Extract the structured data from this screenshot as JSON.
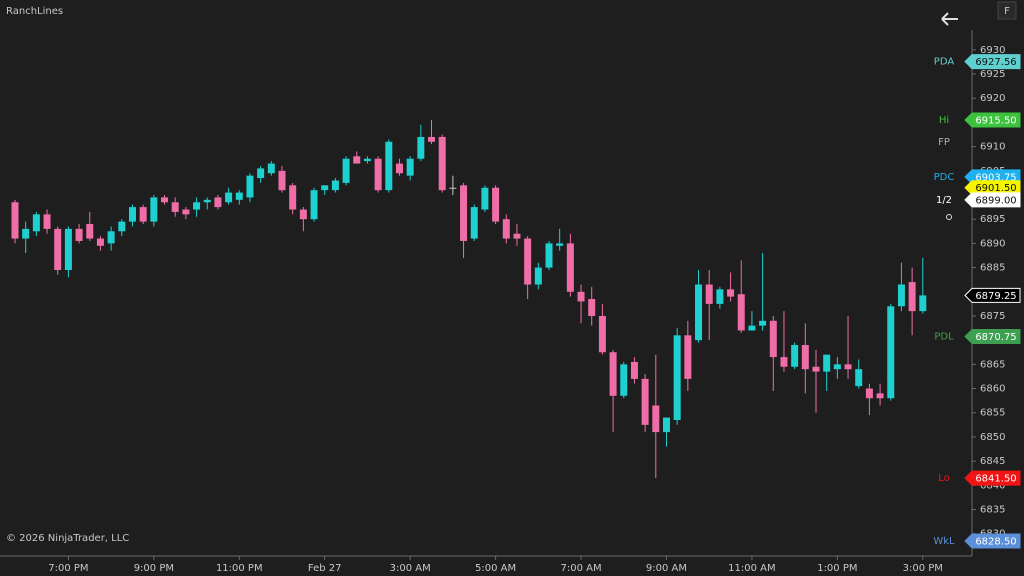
{
  "chart_data": {
    "type": "candlestick",
    "title": "RanchLines",
    "footer": "© 2026 NinjaTrader, LLC",
    "panel_button": "F",
    "categories": [
      null,
      null,
      null,
      null,
      null,
      "7:00 PM",
      null,
      null,
      null,
      null,
      null,
      null,
      null,
      "9:00 PM",
      null,
      null,
      null,
      null,
      null,
      null,
      null,
      "11:00 PM",
      null,
      null,
      null,
      null,
      null,
      null,
      null,
      "Feb 27",
      null,
      null,
      null,
      null,
      null,
      null,
      null,
      "3:00 AM",
      null,
      null,
      null,
      null,
      null,
      null,
      null,
      "5:00 AM",
      null,
      null,
      null,
      null,
      null,
      null,
      null,
      "7:00 AM",
      null,
      null,
      null,
      null,
      null,
      null,
      null,
      "9:00 AM",
      null,
      null,
      null,
      null,
      null,
      null,
      null,
      "11:00 AM",
      null,
      null,
      null,
      null,
      null,
      null,
      null,
      "1:00 PM",
      null,
      null,
      null,
      null,
      null,
      null,
      null,
      "3:00 PM"
    ],
    "open": [
      6898.5,
      6891,
      6892.5,
      6896,
      6893,
      6884.5,
      6893,
      6894,
      6891,
      6890,
      6892.5,
      6894.5,
      6897.5,
      6894.5,
      6899.5,
      6898.5,
      6897,
      6897,
      6898.5,
      6899.5,
      6898.5,
      6899,
      6899.5,
      6903.5,
      6904.5,
      6905,
      6902,
      6897,
      6895,
      6901,
      6901,
      6902.5,
      6908,
      6907,
      6907.5,
      6901,
      6906.5,
      6904,
      6907.5,
      6912,
      6912,
      6901.5,
      6902,
      6891,
      6897,
      6901.5,
      6895,
      6892,
      6891,
      6881.5,
      6885,
      6889.5,
      6890,
      6880,
      6878.5,
      6875,
      6867.5,
      6858.5,
      6865.5,
      6862,
      6856.5,
      6851,
      6853.5,
      6871,
      6870,
      6881.5,
      6877.5,
      6880.5,
      6879.5,
      6872,
      6873,
      6874,
      6866.5,
      6864.5,
      6869,
      6864.5,
      6863.5,
      6864,
      6865,
      6860.5,
      6860,
      6859,
      6858,
      6877,
      6882,
      6876
    ],
    "high": [
      6899,
      6894.5,
      6896.5,
      6897,
      6893.5,
      6893.5,
      6894,
      6896.5,
      6891.5,
      6893.5,
      6895,
      6898,
      6898,
      6900,
      6900,
      6899.5,
      6897.5,
      6899.5,
      6899.5,
      6900,
      6901.5,
      6901,
      6904.5,
      6906,
      6907,
      6906,
      6902.5,
      6897.5,
      6901.5,
      6902,
      6903.5,
      6908,
      6909,
      6908,
      6908,
      6911.5,
      6907.5,
      6908,
      6914.5,
      6915.5,
      6912.5,
      6904,
      6902.5,
      6898,
      6902,
      6902,
      6896,
      6894,
      6891.5,
      6886,
      6890.5,
      6893,
      6892,
      6881.5,
      6881,
      6877.5,
      6868,
      6865.5,
      6866.5,
      6863,
      6867,
      6854,
      6872.5,
      6874,
      6884.5,
      6884.5,
      6881,
      6884,
      6886.5,
      6876,
      6888,
      6875,
      6876,
      6869.5,
      6873.5,
      6868,
      6867,
      6866.5,
      6875,
      6866,
      6861,
      6861,
      6877.5,
      6886,
      6885,
      6887
    ],
    "low": [
      6890,
      6888,
      6891.5,
      6892,
      6883.5,
      6883,
      6890,
      6890.5,
      6888.5,
      6888.5,
      6891.5,
      6893.5,
      6894,
      6893.5,
      6898,
      6895.5,
      6895,
      6895.5,
      6897,
      6897,
      6898,
      6898,
      6898.5,
      6902.5,
      6904,
      6900.5,
      6896,
      6892.5,
      6894.5,
      6900,
      6900.5,
      6902,
      6906.5,
      6906.5,
      6900.5,
      6900.5,
      6904,
      6903,
      6907,
      6910.5,
      6900.5,
      6900,
      6887,
      6890.5,
      6896.5,
      6894,
      6890,
      6889.5,
      6878.5,
      6880.5,
      6884.5,
      6888.5,
      6879,
      6873.5,
      6873,
      6867,
      6851,
      6858,
      6861,
      6851,
      6841.5,
      6848,
      6852.5,
      6859.5,
      6869.5,
      6870,
      6876.5,
      6878,
      6871.5,
      6872,
      6872,
      6859.5,
      6863.5,
      6864,
      6859,
      6855,
      6859.5,
      6862,
      6862,
      6860,
      6854.5,
      6856.5,
      6857.5,
      6876,
      6871,
      6875.5
    ],
    "close": [
      6891,
      6893,
      6896,
      6893,
      6884.5,
      6893,
      6890.5,
      6891,
      6889.5,
      6892.5,
      6894.5,
      6897.5,
      6894.5,
      6899.5,
      6898.5,
      6896.5,
      6896,
      6898.5,
      6899,
      6897.5,
      6900.5,
      6900.5,
      6904,
      6905.5,
      6906.5,
      6901,
      6897,
      6895,
      6901,
      6902,
      6903,
      6907.5,
      6906.5,
      6907.5,
      6901,
      6911,
      6904.5,
      6907.5,
      6912,
      6911,
      6901,
      6901.5,
      6890.5,
      6897.5,
      6901.5,
      6894.5,
      6891,
      6891,
      6881.5,
      6885,
      6890,
      6890,
      6880,
      6878,
      6875,
      6867.5,
      6858.5,
      6865,
      6862,
      6852.5,
      6851,
      6854,
      6871,
      6862,
      6881.5,
      6877.5,
      6880.5,
      6879,
      6872,
      6873,
      6874,
      6866.5,
      6864.5,
      6869,
      6864,
      6863.5,
      6867,
      6865,
      6864,
      6864,
      6858,
      6858,
      6877,
      6881.5,
      6876,
      6879.25
    ],
    "up_color": "#1fd0d0",
    "down_color": "#f06ea8",
    "flat_color": "#c8c8c8",
    "ylim": [
      6825.6,
      6940.3
    ],
    "yticks": [
      6830,
      6835,
      6840,
      6845,
      6850,
      6855,
      6860,
      6865,
      6870,
      6875,
      6880,
      6885,
      6890,
      6895,
      6900,
      6905,
      6910,
      6915,
      6920,
      6925,
      6930
    ],
    "levels": [
      {
        "name": "PDA",
        "value": 6927.56,
        "color": "#5fd0d0"
      },
      {
        "name": "Hi",
        "value": 6915.5,
        "value_label": "6915.50",
        "color": "#3cc23c"
      },
      {
        "name": "FP",
        "value": 6911,
        "color": "#b0b0b0",
        "show_tag": false
      },
      {
        "name": "PDC",
        "value": 6903.75,
        "color": "#1eb0f0"
      },
      {
        "value": 6901.5,
        "value_label": "6901.50",
        "color": "#f5f500"
      },
      {
        "name": "1/2",
        "value": 6899,
        "value_label": "6899.00",
        "color": "#ffffff"
      },
      {
        "value": 6879.25,
        "color": "#000000",
        "border_color": "#ffffff"
      },
      {
        "name": "PDL",
        "value": 6870.75,
        "color": "#3ca050"
      },
      {
        "name": "Lo",
        "value": 6841.5,
        "value_label": "6841.50",
        "color": "#f01414"
      },
      {
        "name": "WkL",
        "value": 6828.5,
        "value_label": "6828.50",
        "color": "#5b8fd8"
      }
    ]
  }
}
